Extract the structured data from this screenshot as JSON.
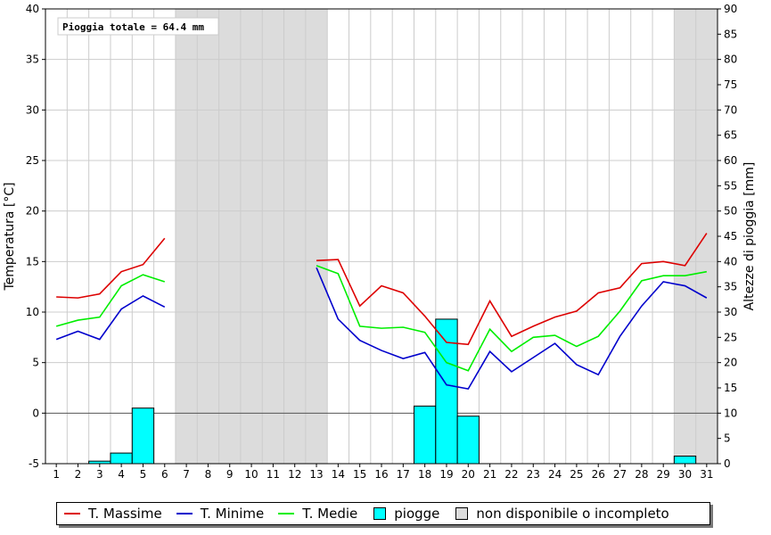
{
  "chart_data": {
    "type": "line",
    "annotation": "Pioggia totale = 64.4 mm",
    "ylabel_left": "Temperatura [°C]",
    "ylabel_right": "Altezze di pioggia [mm]",
    "ylim_left": [
      -5,
      40
    ],
    "ylim_right": [
      0,
      90
    ],
    "yticks_left": [
      "-5",
      "0",
      "5",
      "10",
      "15",
      "20",
      "25",
      "30",
      "35",
      "40"
    ],
    "yticks_right": [
      "0",
      "5",
      "10",
      "15",
      "20",
      "25",
      "30",
      "35",
      "40",
      "45",
      "50",
      "55",
      "60",
      "65",
      "70",
      "75",
      "80",
      "85",
      "90"
    ],
    "categories": [
      "1",
      "2",
      "3",
      "4",
      "5",
      "6",
      "7",
      "8",
      "9",
      "10",
      "11",
      "12",
      "13",
      "14",
      "15",
      "16",
      "17",
      "18",
      "19",
      "20",
      "21",
      "22",
      "23",
      "24",
      "25",
      "26",
      "27",
      "28",
      "29",
      "30",
      "31"
    ],
    "grid": true,
    "legend_position": "bottom",
    "series": [
      {
        "name": "T. Massime",
        "color": "#dd0000",
        "values": [
          11.5,
          11.4,
          11.8,
          14.0,
          14.7,
          17.3,
          null,
          null,
          null,
          null,
          null,
          null,
          15.1,
          15.2,
          10.6,
          12.6,
          11.9,
          9.6,
          7.0,
          6.8,
          11.1,
          7.6,
          8.6,
          9.5,
          10.1,
          11.9,
          12.4,
          14.8,
          15.0,
          14.6,
          17.8
        ]
      },
      {
        "name": "T. Minime",
        "color": "#0000cc",
        "values": [
          7.3,
          8.1,
          7.3,
          10.3,
          11.6,
          10.5,
          null,
          null,
          null,
          null,
          null,
          null,
          14.4,
          9.3,
          7.2,
          6.2,
          5.4,
          6.0,
          2.8,
          2.4,
          6.1,
          4.1,
          5.5,
          6.9,
          4.8,
          3.8,
          7.6,
          10.6,
          13.0,
          12.6,
          11.4
        ]
      },
      {
        "name": "T. Medie",
        "color": "#00ee00",
        "values": [
          8.6,
          9.2,
          9.5,
          12.6,
          13.7,
          13.0,
          null,
          null,
          null,
          null,
          null,
          null,
          14.6,
          13.8,
          8.6,
          8.4,
          8.5,
          8.0,
          5.0,
          4.2,
          8.3,
          6.1,
          7.5,
          7.7,
          6.6,
          7.6,
          10.1,
          13.1,
          13.6,
          13.6,
          14.0
        ]
      },
      {
        "name": "piogge",
        "color": "#00ffff",
        "axis": "right",
        "kind": "bar",
        "values": [
          0,
          0,
          0.5,
          2.1,
          11.0,
          0,
          0,
          0,
          0,
          0,
          0,
          0,
          0,
          0,
          0,
          0,
          0,
          11.4,
          28.6,
          9.4,
          0,
          0,
          0,
          0,
          0,
          0,
          0,
          0,
          0,
          1.5,
          0
        ]
      }
    ],
    "unavailable_label": "non disponibile o incompleto",
    "unavailable_days": [
      7,
      8,
      9,
      10,
      11,
      12,
      13,
      30,
      31
    ],
    "colors": {
      "unavailable": "#dcdcdc",
      "grid": "#cccccc",
      "zero_line": "#555555"
    }
  },
  "legend": {
    "items": [
      {
        "label": "T. Massime",
        "color": "#dd0000"
      },
      {
        "label": "T. Minime",
        "color": "#0000cc"
      },
      {
        "label": "T. Medie",
        "color": "#00ee00"
      },
      {
        "label": "piogge",
        "color": "#00ffff"
      },
      {
        "label": "non disponibile o incompleto",
        "color": "#dcdcdc"
      }
    ]
  }
}
